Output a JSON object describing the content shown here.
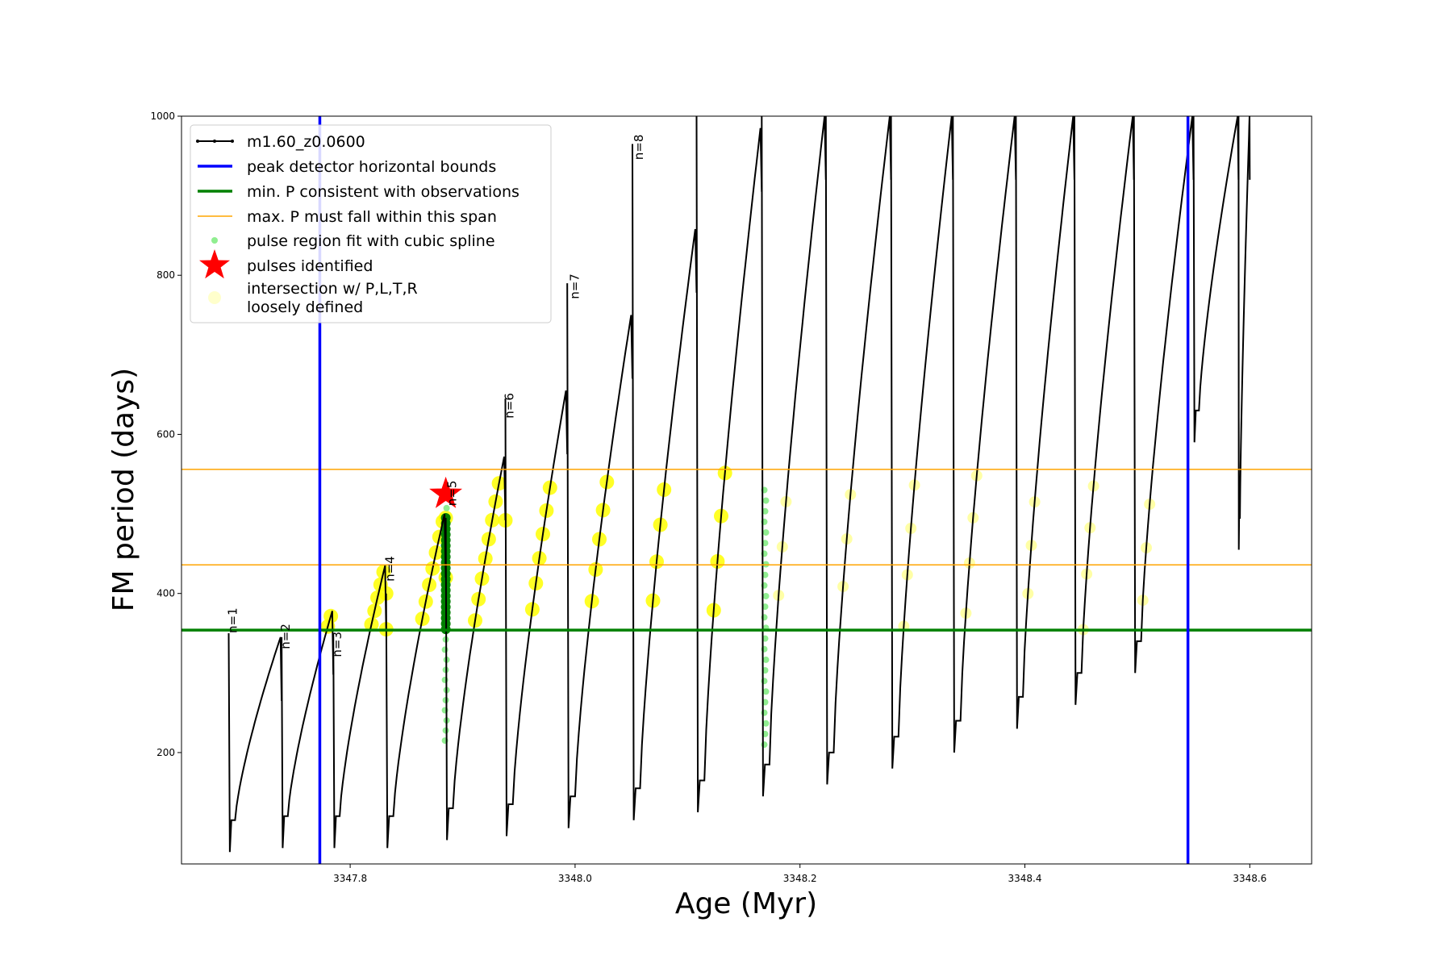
{
  "chart_data": {
    "type": "line",
    "xlabel": "Age (Myr)",
    "ylabel": "FM period (days)",
    "xlim": [
      3347.65,
      3348.655
    ],
    "ylim": [
      60,
      1000
    ],
    "xticks": [
      "3347.8",
      "3348.0",
      "3348.2",
      "3348.4",
      "3348.6"
    ],
    "xtick_values": [
      3347.8,
      3348.0,
      3348.2,
      3348.4,
      3348.6
    ],
    "yticks": [
      "200",
      "400",
      "600",
      "800",
      "1000"
    ],
    "ytick_values": [
      200,
      400,
      600,
      800,
      1000
    ],
    "grid": false,
    "legend_position": "upper-left",
    "colors": {
      "model": "#000000",
      "bounds": "#0000ff",
      "min_p": "#008000",
      "max_p": "#ffa500",
      "spline": "#90ee90",
      "star": "#ff0000",
      "intersection": "#ffff00"
    },
    "legend": [
      {
        "label": "m1.60_z0.0600",
        "kind": "line-marker",
        "color": "#000000"
      },
      {
        "label": "peak detector horizontal bounds",
        "kind": "line",
        "color": "#0000ff"
      },
      {
        "label": "min. P consistent with observations",
        "kind": "line",
        "color": "#008000"
      },
      {
        "label": "max. P must fall within this span",
        "kind": "thin-line",
        "color": "#ffa500"
      },
      {
        "label": "pulse region fit with cubic spline",
        "kind": "dot",
        "color": "#90ee90"
      },
      {
        "label": "pulses identified",
        "kind": "star",
        "color": "#ff0000"
      },
      {
        "label": "intersection w/ P,L,T,R",
        "label2": "loosely defined",
        "kind": "big-dot",
        "color": "#ffffcc"
      }
    ],
    "vertical_bounds": [
      3347.773,
      3348.545
    ],
    "min_period": 354,
    "max_period_span": [
      436,
      556
    ],
    "star_point": {
      "x": 3347.885,
      "y": 525
    },
    "pulse_labels": [
      {
        "text": "n=1",
        "x": 3347.692,
        "y": 350
      },
      {
        "text": "n=2",
        "x": 3347.739,
        "y": 330
      },
      {
        "text": "n=3",
        "x": 3347.785,
        "y": 320
      },
      {
        "text": "n=4",
        "x": 3347.832,
        "y": 415
      },
      {
        "text": "n=5",
        "x": 3347.887,
        "y": 510
      },
      {
        "text": "n=6",
        "x": 3347.938,
        "y": 620
      },
      {
        "text": "n=7",
        "x": 3347.996,
        "y": 770
      },
      {
        "text": "n=8",
        "x": 3348.053,
        "y": 945
      }
    ],
    "pulses": [
      {
        "x0": 3347.692,
        "x1": 3347.739,
        "ystart": 350,
        "ymin": 75,
        "ypeak": 345
      },
      {
        "x0": 3347.739,
        "x1": 3347.785,
        "ystart": 345,
        "ymin": 80,
        "ypeak": 378
      },
      {
        "x0": 3347.785,
        "x1": 3347.832,
        "ystart": 350,
        "ymin": 80,
        "ypeak": 435
      },
      {
        "x0": 3347.832,
        "x1": 3347.885,
        "ystart": 400,
        "ymin": 80,
        "ypeak": 500
      },
      {
        "x0": 3347.885,
        "x1": 3347.938,
        "ystart": 495,
        "ymin": 90,
        "ypeak": 572
      },
      {
        "x0": 3347.938,
        "x1": 3347.993,
        "ystart": 645,
        "ymin": 95,
        "ypeak": 655
      },
      {
        "x0": 3347.993,
        "x1": 3348.051,
        "ystart": 790,
        "ymin": 105,
        "ypeak": 750
      },
      {
        "x0": 3348.051,
        "x1": 3348.108,
        "ystart": 965,
        "ymin": 115,
        "ypeak": 858
      },
      {
        "x0": 3348.108,
        "x1": 3348.166,
        "ystart": 1000,
        "ymin": 125,
        "ypeak": 985
      },
      {
        "x0": 3348.166,
        "x1": 3348.223,
        "ystart": 1000,
        "ymin": 145,
        "ypeak": 1000
      },
      {
        "x0": 3348.223,
        "x1": 3348.281,
        "ystart": 1000,
        "ymin": 160,
        "ypeak": 1000
      },
      {
        "x0": 3348.281,
        "x1": 3348.336,
        "ystart": 1000,
        "ymin": 180,
        "ypeak": 1000
      },
      {
        "x0": 3348.336,
        "x1": 3348.392,
        "ystart": 1000,
        "ymin": 200,
        "ypeak": 1000
      },
      {
        "x0": 3348.392,
        "x1": 3348.444,
        "ystart": 1000,
        "ymin": 230,
        "ypeak": 1000
      },
      {
        "x0": 3348.444,
        "x1": 3348.497,
        "ystart": 1000,
        "ymin": 260,
        "ypeak": 1000
      },
      {
        "x0": 3348.497,
        "x1": 3348.55,
        "ystart": 1000,
        "ymin": 300,
        "ypeak": 1000
      },
      {
        "x0": 3348.55,
        "x1": 3348.59,
        "ystart": 1000,
        "ymin": 590,
        "ypeak": 1000
      },
      {
        "x0": 3348.59,
        "x1": 3348.6,
        "ystart": 1000,
        "ymin": 455,
        "ypeak": 1000
      }
    ]
  }
}
